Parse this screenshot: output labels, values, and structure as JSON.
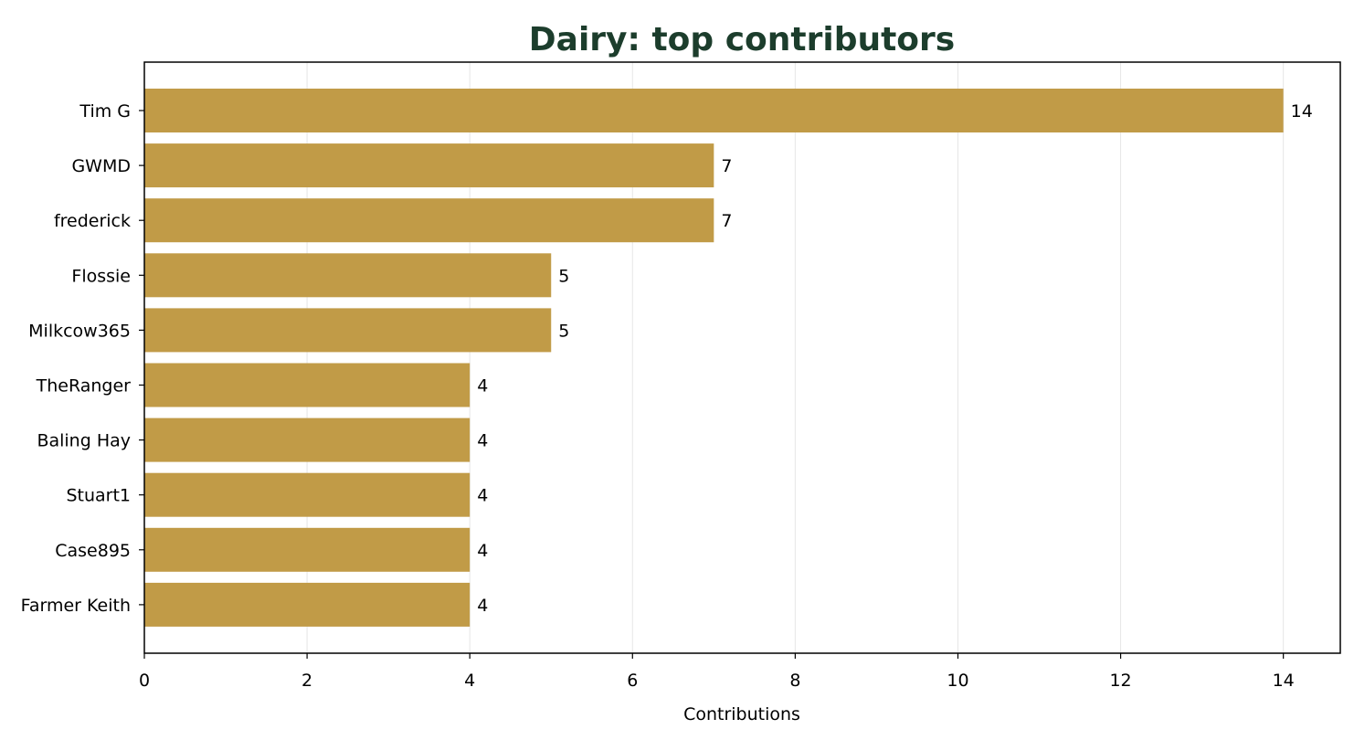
{
  "chart_data": {
    "type": "bar",
    "orientation": "horizontal",
    "title": "Dairy: top contributors",
    "xlabel": "Contributions",
    "ylabel": "",
    "categories": [
      "Tim G",
      "GWMD",
      "frederick",
      "Flossie",
      "Milkcow365",
      "TheRanger",
      "Baling Hay",
      "Stuart1",
      "Case895",
      "Farmer Keith"
    ],
    "values": [
      14,
      7,
      7,
      5,
      5,
      4,
      4,
      4,
      4,
      4
    ],
    "xlim": [
      0,
      14.7
    ],
    "xticks": [
      0,
      2,
      4,
      6,
      8,
      10,
      12,
      14
    ],
    "grid": "vertical",
    "legend": "none",
    "data_labels": true
  },
  "colors": {
    "bar": "#c19b47",
    "title": "#1c3d2c",
    "grid": "#e6e6e6",
    "axis": "#000000"
  }
}
